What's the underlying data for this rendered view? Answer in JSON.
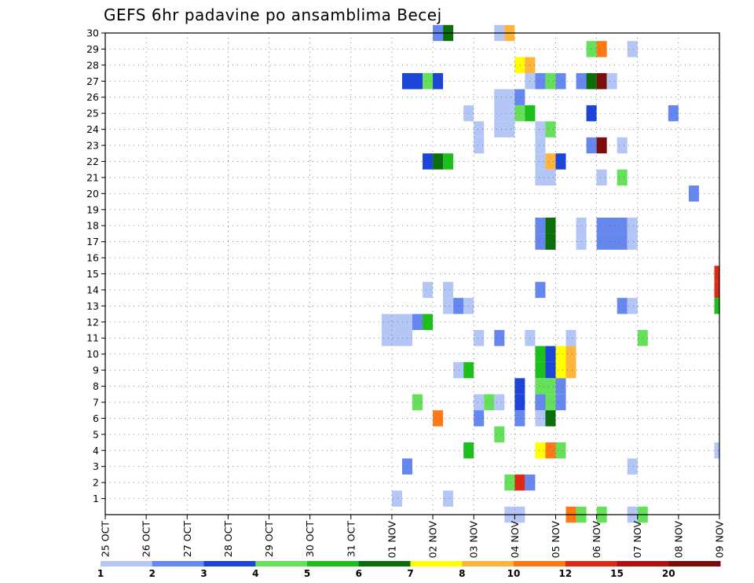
{
  "chart_data": {
    "type": "heatmap",
    "title": "GEFS 6hr padavine po ansamblima Becej",
    "y_ticks": [
      "1",
      "2",
      "3",
      "4",
      "5",
      "6",
      "7",
      "8",
      "9",
      "10",
      "11",
      "12",
      "13",
      "14",
      "15",
      "16",
      "17",
      "18",
      "19",
      "20",
      "21",
      "22",
      "23",
      "24",
      "25",
      "26",
      "27",
      "28",
      "29",
      "30"
    ],
    "x_ticks": [
      "25 OCT",
      "26 OCT",
      "27 OCT",
      "28 OCT",
      "29 OCT",
      "30 OCT",
      "31 OCT",
      "01 NOV",
      "02 NOV",
      "03 NOV",
      "04 NOV",
      "05 NOV",
      "06 NOV",
      "07 NOV",
      "08 NOV",
      "09 NOV"
    ],
    "x_range": [
      0,
      15
    ],
    "y_range": [
      0,
      30
    ],
    "grid": true,
    "legend": {
      "position": "bottom",
      "labels": [
        "1",
        "2",
        "3",
        "4",
        "5",
        "6",
        "7",
        "8",
        "10",
        "12",
        "15",
        "20"
      ],
      "colors": [
        "#b3c6f5",
        "#6688ee",
        "#1c44d8",
        "#66e05a",
        "#1cbf1c",
        "#0a6e0a",
        "#ffff00",
        "#ffb43c",
        "#ff7814",
        "#dc2a14",
        "#b40f0f",
        "#7a0c0c"
      ]
    },
    "cells": [
      {
        "x": 8.0,
        "y": 30,
        "w": 0.25,
        "c": 2
      },
      {
        "x": 8.25,
        "y": 30,
        "w": 0.25,
        "c": 6
      },
      {
        "x": 9.5,
        "y": 30,
        "w": 0.25,
        "c": 1
      },
      {
        "x": 9.75,
        "y": 30,
        "w": 0.25,
        "c": 8
      },
      {
        "x": 11.75,
        "y": 29,
        "w": 0.25,
        "c": 4
      },
      {
        "x": 12.0,
        "y": 29,
        "w": 0.25,
        "c": 9
      },
      {
        "x": 12.75,
        "y": 29,
        "w": 0.25,
        "c": 1
      },
      {
        "x": 10.0,
        "y": 28,
        "w": 0.25,
        "c": 7
      },
      {
        "x": 10.25,
        "y": 28,
        "w": 0.25,
        "c": 8
      },
      {
        "x": 7.25,
        "y": 27,
        "w": 0.5,
        "c": 3
      },
      {
        "x": 7.75,
        "y": 27,
        "w": 0.25,
        "c": 4
      },
      {
        "x": 8.0,
        "y": 27,
        "w": 0.25,
        "c": 3
      },
      {
        "x": 10.25,
        "y": 27,
        "w": 0.25,
        "c": 1
      },
      {
        "x": 10.5,
        "y": 27,
        "w": 0.25,
        "c": 2
      },
      {
        "x": 10.75,
        "y": 27,
        "w": 0.25,
        "c": 4
      },
      {
        "x": 11.0,
        "y": 27,
        "w": 0.25,
        "c": 2
      },
      {
        "x": 11.5,
        "y": 27,
        "w": 0.25,
        "c": 2
      },
      {
        "x": 11.75,
        "y": 27,
        "w": 0.25,
        "c": 6
      },
      {
        "x": 12.0,
        "y": 27,
        "w": 0.25,
        "c": 12
      },
      {
        "x": 12.25,
        "y": 27,
        "w": 0.25,
        "c": 1
      },
      {
        "x": 9.5,
        "y": 26,
        "w": 0.5,
        "c": 1
      },
      {
        "x": 10.0,
        "y": 26,
        "w": 0.25,
        "c": 2
      },
      {
        "x": 8.75,
        "y": 25,
        "w": 0.25,
        "c": 1
      },
      {
        "x": 9.5,
        "y": 25,
        "w": 0.5,
        "c": 1
      },
      {
        "x": 10.0,
        "y": 25,
        "w": 0.25,
        "c": 4
      },
      {
        "x": 10.25,
        "y": 25,
        "w": 0.25,
        "c": 5
      },
      {
        "x": 11.75,
        "y": 25,
        "w": 0.25,
        "c": 3
      },
      {
        "x": 13.75,
        "y": 25,
        "w": 0.25,
        "c": 2
      },
      {
        "x": 9.5,
        "y": 24,
        "w": 0.5,
        "c": 1
      },
      {
        "x": 9.0,
        "y": 24,
        "w": 0.25,
        "c": 1
      },
      {
        "x": 10.5,
        "y": 24,
        "w": 0.25,
        "c": 1
      },
      {
        "x": 10.75,
        "y": 24,
        "w": 0.25,
        "c": 4
      },
      {
        "x": 9.0,
        "y": 23,
        "w": 0.25,
        "c": 1
      },
      {
        "x": 10.5,
        "y": 23,
        "w": 0.25,
        "c": 1
      },
      {
        "x": 11.75,
        "y": 23,
        "w": 0.25,
        "c": 2
      },
      {
        "x": 12.0,
        "y": 23,
        "w": 0.25,
        "c": 12
      },
      {
        "x": 12.5,
        "y": 23,
        "w": 0.25,
        "c": 1
      },
      {
        "x": 7.75,
        "y": 22,
        "w": 0.25,
        "c": 3
      },
      {
        "x": 8.0,
        "y": 22,
        "w": 0.25,
        "c": 6
      },
      {
        "x": 8.25,
        "y": 22,
        "w": 0.25,
        "c": 5
      },
      {
        "x": 10.5,
        "y": 22,
        "w": 0.25,
        "c": 1
      },
      {
        "x": 10.75,
        "y": 22,
        "w": 0.25,
        "c": 8
      },
      {
        "x": 11.0,
        "y": 22,
        "w": 0.25,
        "c": 3
      },
      {
        "x": 10.5,
        "y": 21,
        "w": 0.5,
        "c": 1
      },
      {
        "x": 12.0,
        "y": 21,
        "w": 0.25,
        "c": 1
      },
      {
        "x": 12.5,
        "y": 21,
        "w": 0.25,
        "c": 4
      },
      {
        "x": 14.25,
        "y": 20,
        "w": 0.25,
        "c": 2
      },
      {
        "x": 10.5,
        "y": 18,
        "w": 0.25,
        "c": 2
      },
      {
        "x": 10.75,
        "y": 18,
        "w": 0.25,
        "c": 6
      },
      {
        "x": 11.5,
        "y": 18,
        "w": 0.25,
        "c": 1
      },
      {
        "x": 12.0,
        "y": 18,
        "w": 0.75,
        "c": 2
      },
      {
        "x": 12.75,
        "y": 18,
        "w": 0.25,
        "c": 1
      },
      {
        "x": 10.5,
        "y": 17,
        "w": 0.25,
        "c": 2
      },
      {
        "x": 10.75,
        "y": 17,
        "w": 0.25,
        "c": 6
      },
      {
        "x": 11.5,
        "y": 17,
        "w": 0.25,
        "c": 1
      },
      {
        "x": 12.0,
        "y": 17,
        "w": 0.75,
        "c": 2
      },
      {
        "x": 12.75,
        "y": 17,
        "w": 0.25,
        "c": 1
      },
      {
        "x": 14.875,
        "y": 15,
        "w": 0.125,
        "c": 10
      },
      {
        "x": 7.75,
        "y": 14,
        "w": 0.25,
        "c": 1
      },
      {
        "x": 8.25,
        "y": 14,
        "w": 0.25,
        "c": 1
      },
      {
        "x": 10.5,
        "y": 14,
        "w": 0.25,
        "c": 2
      },
      {
        "x": 14.875,
        "y": 14,
        "w": 0.125,
        "c": 10
      },
      {
        "x": 8.25,
        "y": 13,
        "w": 0.25,
        "c": 1
      },
      {
        "x": 8.5,
        "y": 13,
        "w": 0.25,
        "c": 2
      },
      {
        "x": 8.75,
        "y": 13,
        "w": 0.25,
        "c": 1
      },
      {
        "x": 12.5,
        "y": 13,
        "w": 0.25,
        "c": 2
      },
      {
        "x": 12.75,
        "y": 13,
        "w": 0.25,
        "c": 1
      },
      {
        "x": 14.875,
        "y": 13,
        "w": 0.125,
        "c": 5
      },
      {
        "x": 6.75,
        "y": 12,
        "w": 0.75,
        "c": 1
      },
      {
        "x": 7.5,
        "y": 12,
        "w": 0.25,
        "c": 2
      },
      {
        "x": 7.75,
        "y": 12,
        "w": 0.25,
        "c": 5
      },
      {
        "x": 6.75,
        "y": 11,
        "w": 0.75,
        "c": 1
      },
      {
        "x": 9.0,
        "y": 11,
        "w": 0.25,
        "c": 1
      },
      {
        "x": 9.5,
        "y": 11,
        "w": 0.25,
        "c": 2
      },
      {
        "x": 10.25,
        "y": 11,
        "w": 0.25,
        "c": 1
      },
      {
        "x": 11.25,
        "y": 11,
        "w": 0.25,
        "c": 1
      },
      {
        "x": 13.0,
        "y": 11,
        "w": 0.25,
        "c": 4
      },
      {
        "x": 10.5,
        "y": 10,
        "w": 0.25,
        "c": 5
      },
      {
        "x": 10.75,
        "y": 10,
        "w": 0.25,
        "c": 3
      },
      {
        "x": 11.0,
        "y": 10,
        "w": 0.25,
        "c": 7
      },
      {
        "x": 11.25,
        "y": 10,
        "w": 0.25,
        "c": 8
      },
      {
        "x": 8.5,
        "y": 9,
        "w": 0.25,
        "c": 1
      },
      {
        "x": 8.75,
        "y": 9,
        "w": 0.25,
        "c": 5
      },
      {
        "x": 10.5,
        "y": 9,
        "w": 0.25,
        "c": 5
      },
      {
        "x": 10.75,
        "y": 9,
        "w": 0.25,
        "c": 3
      },
      {
        "x": 11.0,
        "y": 9,
        "w": 0.25,
        "c": 7
      },
      {
        "x": 11.25,
        "y": 9,
        "w": 0.25,
        "c": 8
      },
      {
        "x": 10.0,
        "y": 8,
        "w": 0.25,
        "c": 3
      },
      {
        "x": 10.5,
        "y": 8,
        "w": 0.5,
        "c": 4
      },
      {
        "x": 11.0,
        "y": 8,
        "w": 0.25,
        "c": 2
      },
      {
        "x": 10.0,
        "y": 7,
        "w": 0.25,
        "c": 3
      },
      {
        "x": 10.5,
        "y": 7,
        "w": 0.5,
        "c": 4
      },
      {
        "x": 11.0,
        "y": 7,
        "w": 0.25,
        "c": 2
      },
      {
        "x": 7.5,
        "y": 7,
        "w": 0.25,
        "c": 4
      },
      {
        "x": 9.0,
        "y": 7,
        "w": 0.25,
        "c": 1
      },
      {
        "x": 9.25,
        "y": 7,
        "w": 0.25,
        "c": 4
      },
      {
        "x": 9.5,
        "y": 7,
        "w": 0.25,
        "c": 1
      },
      {
        "x": 10.5,
        "y": 7,
        "w": 0.25,
        "c": 2
      },
      {
        "x": 8.0,
        "y": 6,
        "w": 0.25,
        "c": 9
      },
      {
        "x": 9.0,
        "y": 6,
        "w": 0.25,
        "c": 2
      },
      {
        "x": 10.0,
        "y": 6,
        "w": 0.25,
        "c": 2
      },
      {
        "x": 10.5,
        "y": 6,
        "w": 0.25,
        "c": 1
      },
      {
        "x": 10.75,
        "y": 6,
        "w": 0.25,
        "c": 6
      },
      {
        "x": 9.5,
        "y": 5,
        "w": 0.25,
        "c": 4
      },
      {
        "x": 8.75,
        "y": 4,
        "w": 0.25,
        "c": 5
      },
      {
        "x": 10.5,
        "y": 4,
        "w": 0.25,
        "c": 7
      },
      {
        "x": 10.75,
        "y": 4,
        "w": 0.25,
        "c": 9
      },
      {
        "x": 11.0,
        "y": 4,
        "w": 0.25,
        "c": 4
      },
      {
        "x": 14.875,
        "y": 4,
        "w": 0.125,
        "c": 1
      },
      {
        "x": 7.25,
        "y": 3,
        "w": 0.25,
        "c": 2
      },
      {
        "x": 12.75,
        "y": 3,
        "w": 0.25,
        "c": 1
      },
      {
        "x": 9.75,
        "y": 2,
        "w": 0.25,
        "c": 4
      },
      {
        "x": 10.0,
        "y": 2,
        "w": 0.25,
        "c": 10
      },
      {
        "x": 10.25,
        "y": 2,
        "w": 0.25,
        "c": 2
      },
      {
        "x": 7.0,
        "y": 1,
        "w": 0.25,
        "c": 1
      },
      {
        "x": 8.25,
        "y": 1,
        "w": 0.25,
        "c": 1
      },
      {
        "x": 9.75,
        "y": 0,
        "w": 0.5,
        "c": 1
      },
      {
        "x": 11.25,
        "y": 0,
        "w": 0.25,
        "c": 9
      },
      {
        "x": 11.5,
        "y": 0,
        "w": 0.25,
        "c": 4
      },
      {
        "x": 12.0,
        "y": 0,
        "w": 0.25,
        "c": 4
      },
      {
        "x": 12.75,
        "y": 0,
        "w": 0.25,
        "c": 1
      },
      {
        "x": 13.0,
        "y": 0,
        "w": 0.25,
        "c": 4
      }
    ]
  }
}
